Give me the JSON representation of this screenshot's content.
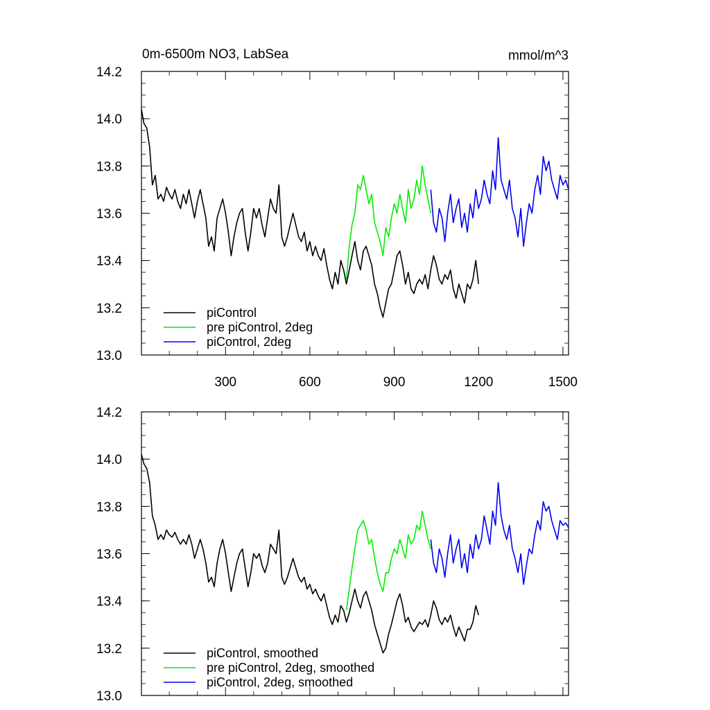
{
  "chart_data": [
    {
      "type": "line",
      "title": "0m-6500m NO3, LabSea",
      "units": "mmol/m^3",
      "xlabel": "",
      "ylabel": "",
      "xlim": [
        1,
        1520
      ],
      "ylim": [
        13.0,
        14.2
      ],
      "xticks": [
        "300",
        "600",
        "900",
        "1200",
        "1500"
      ],
      "yticks": [
        "13.0",
        "13.2",
        "13.4",
        "13.6",
        "13.8",
        "14.0",
        "14.2"
      ],
      "legend_position": "bottom-left",
      "series": [
        {
          "name": "piControl",
          "color": "#000000",
          "x": [
            1,
            10,
            20,
            30,
            40,
            50,
            60,
            70,
            80,
            90,
            100,
            110,
            120,
            130,
            140,
            150,
            160,
            170,
            180,
            190,
            200,
            210,
            220,
            230,
            240,
            250,
            260,
            270,
            280,
            290,
            300,
            310,
            320,
            330,
            340,
            350,
            360,
            370,
            380,
            390,
            400,
            410,
            420,
            430,
            440,
            450,
            460,
            470,
            480,
            490,
            500,
            510,
            520,
            530,
            540,
            550,
            560,
            570,
            580,
            590,
            600,
            610,
            620,
            630,
            640,
            650,
            660,
            670,
            680,
            690,
            700,
            710,
            720,
            730,
            740,
            750,
            760,
            770,
            780,
            790,
            800,
            810,
            820,
            830,
            840,
            850,
            860,
            870,
            880,
            890,
            900,
            910,
            920,
            930,
            940,
            950,
            960,
            970,
            980,
            990,
            1000,
            1010,
            1020,
            1030,
            1040,
            1050,
            1060,
            1070,
            1080,
            1090,
            1100,
            1110,
            1120,
            1130,
            1140,
            1150,
            1160,
            1170,
            1180,
            1190,
            1200
          ],
          "values": [
            14.04,
            13.98,
            13.96,
            13.88,
            13.72,
            13.76,
            13.66,
            13.68,
            13.65,
            13.71,
            13.68,
            13.66,
            13.7,
            13.65,
            13.62,
            13.68,
            13.64,
            13.7,
            13.64,
            13.58,
            13.65,
            13.7,
            13.64,
            13.58,
            13.46,
            13.5,
            13.44,
            13.58,
            13.62,
            13.66,
            13.6,
            13.52,
            13.42,
            13.5,
            13.56,
            13.6,
            13.62,
            13.52,
            13.44,
            13.52,
            13.62,
            13.58,
            13.62,
            13.55,
            13.5,
            13.58,
            13.66,
            13.62,
            13.6,
            13.72,
            13.5,
            13.46,
            13.5,
            13.55,
            13.6,
            13.55,
            13.5,
            13.48,
            13.52,
            13.44,
            13.48,
            13.42,
            13.46,
            13.42,
            13.4,
            13.45,
            13.38,
            13.32,
            13.28,
            13.35,
            13.3,
            13.4,
            13.36,
            13.3,
            13.36,
            13.42,
            13.48,
            13.4,
            13.36,
            13.44,
            13.46,
            13.42,
            13.38,
            13.3,
            13.26,
            13.2,
            13.16,
            13.22,
            13.28,
            13.3,
            13.36,
            13.42,
            13.44,
            13.38,
            13.3,
            13.35,
            13.28,
            13.26,
            13.3,
            13.32,
            13.3,
            13.34,
            13.28,
            13.36,
            13.42,
            13.38,
            13.32,
            13.3,
            13.34,
            13.32,
            13.36,
            13.28,
            13.24,
            13.3,
            13.26,
            13.22,
            13.3,
            13.28,
            13.32,
            13.4,
            13.3
          ]
        },
        {
          "name": "pre piControl, 2deg",
          "color": "#00ee00",
          "x": [
            730,
            740,
            750,
            760,
            770,
            780,
            790,
            800,
            810,
            820,
            830,
            840,
            850,
            860,
            870,
            880,
            890,
            900,
            910,
            920,
            930,
            940,
            950,
            960,
            970,
            980,
            990,
            1000,
            1010,
            1020,
            1030
          ],
          "values": [
            13.32,
            13.46,
            13.55,
            13.6,
            13.72,
            13.7,
            13.76,
            13.7,
            13.64,
            13.68,
            13.56,
            13.52,
            13.48,
            13.42,
            13.54,
            13.5,
            13.58,
            13.64,
            13.6,
            13.68,
            13.62,
            13.56,
            13.7,
            13.62,
            13.66,
            13.74,
            13.68,
            13.8,
            13.72,
            13.66,
            13.6
          ]
        },
        {
          "name": "piControl, 2deg",
          "color": "#0000ee",
          "x": [
            1030,
            1040,
            1050,
            1060,
            1070,
            1080,
            1090,
            1100,
            1110,
            1120,
            1130,
            1140,
            1150,
            1160,
            1170,
            1180,
            1190,
            1200,
            1210,
            1220,
            1230,
            1240,
            1250,
            1260,
            1270,
            1280,
            1290,
            1300,
            1310,
            1320,
            1330,
            1340,
            1350,
            1360,
            1370,
            1380,
            1390,
            1400,
            1410,
            1420,
            1430,
            1440,
            1450,
            1460,
            1470,
            1480,
            1490,
            1500,
            1510,
            1520
          ],
          "values": [
            13.7,
            13.56,
            13.52,
            13.62,
            13.58,
            13.48,
            13.6,
            13.68,
            13.56,
            13.62,
            13.66,
            13.54,
            13.6,
            13.52,
            13.64,
            13.58,
            13.7,
            13.62,
            13.66,
            13.74,
            13.68,
            13.64,
            13.78,
            13.7,
            13.92,
            13.74,
            13.7,
            13.66,
            13.74,
            13.62,
            13.58,
            13.5,
            13.62,
            13.46,
            13.56,
            13.64,
            13.6,
            13.7,
            13.76,
            13.68,
            13.84,
            13.78,
            13.82,
            13.74,
            13.7,
            13.66,
            13.76,
            13.72,
            13.74,
            13.7
          ]
        }
      ],
      "legend": [
        "piControl",
        "pre piControl, 2deg",
        "piControl, 2deg"
      ]
    },
    {
      "type": "line",
      "title": "",
      "xlabel": "",
      "ylabel": "",
      "xlim": [
        1,
        1520
      ],
      "ylim": [
        13.0,
        14.2
      ],
      "xticks": [],
      "yticks": [
        "13.0",
        "13.2",
        "13.4",
        "13.6",
        "13.8",
        "14.0",
        "14.2"
      ],
      "legend_position": "bottom-left",
      "series": [
        {
          "name": "piControl, smoothed",
          "color": "#000000",
          "x": [
            1,
            10,
            20,
            30,
            40,
            50,
            60,
            70,
            80,
            90,
            100,
            110,
            120,
            130,
            140,
            150,
            160,
            170,
            180,
            190,
            200,
            210,
            220,
            230,
            240,
            250,
            260,
            270,
            280,
            290,
            300,
            310,
            320,
            330,
            340,
            350,
            360,
            370,
            380,
            390,
            400,
            410,
            420,
            430,
            440,
            450,
            460,
            470,
            480,
            490,
            500,
            510,
            520,
            530,
            540,
            550,
            560,
            570,
            580,
            590,
            600,
            610,
            620,
            630,
            640,
            650,
            660,
            670,
            680,
            690,
            700,
            710,
            720,
            730,
            740,
            750,
            760,
            770,
            780,
            790,
            800,
            810,
            820,
            830,
            840,
            850,
            860,
            870,
            880,
            890,
            900,
            910,
            920,
            930,
            940,
            950,
            960,
            970,
            980,
            990,
            1000,
            1010,
            1020,
            1030,
            1040,
            1050,
            1060,
            1070,
            1080,
            1090,
            1100,
            1110,
            1120,
            1130,
            1140,
            1150,
            1160,
            1170,
            1180,
            1190,
            1200
          ],
          "values": [
            14.02,
            13.98,
            13.96,
            13.9,
            13.76,
            13.72,
            13.66,
            13.68,
            13.66,
            13.7,
            13.68,
            13.67,
            13.69,
            13.66,
            13.64,
            13.66,
            13.64,
            13.68,
            13.64,
            13.58,
            13.62,
            13.66,
            13.62,
            13.56,
            13.48,
            13.5,
            13.46,
            13.56,
            13.62,
            13.66,
            13.6,
            13.52,
            13.44,
            13.5,
            13.56,
            13.6,
            13.62,
            13.54,
            13.46,
            13.52,
            13.6,
            13.58,
            13.6,
            13.55,
            13.52,
            13.56,
            13.64,
            13.62,
            13.6,
            13.7,
            13.5,
            13.47,
            13.5,
            13.54,
            13.58,
            13.54,
            13.5,
            13.48,
            13.5,
            13.45,
            13.47,
            13.43,
            13.45,
            13.42,
            13.4,
            13.43,
            13.38,
            13.33,
            13.3,
            13.34,
            13.31,
            13.38,
            13.36,
            13.31,
            13.35,
            13.4,
            13.45,
            13.4,
            13.37,
            13.42,
            13.44,
            13.4,
            13.36,
            13.3,
            13.26,
            13.22,
            13.18,
            13.2,
            13.26,
            13.3,
            13.35,
            13.4,
            13.43,
            13.38,
            13.31,
            13.33,
            13.29,
            13.27,
            13.29,
            13.31,
            13.3,
            13.32,
            13.29,
            13.34,
            13.4,
            13.37,
            13.32,
            13.3,
            13.33,
            13.31,
            13.34,
            13.29,
            13.25,
            13.29,
            13.26,
            13.23,
            13.28,
            13.28,
            13.31,
            13.38,
            13.34
          ]
        },
        {
          "name": "pre piControl, 2deg, smoothed",
          "color": "#00ee00",
          "x": [
            730,
            740,
            750,
            760,
            770,
            780,
            790,
            800,
            810,
            820,
            830,
            840,
            850,
            860,
            870,
            880,
            890,
            900,
            910,
            920,
            930,
            940,
            950,
            960,
            970,
            980,
            990,
            1000,
            1010,
            1020,
            1030
          ],
          "values": [
            13.36,
            13.45,
            13.54,
            13.62,
            13.7,
            13.72,
            13.74,
            13.7,
            13.64,
            13.66,
            13.58,
            13.52,
            13.47,
            13.44,
            13.52,
            13.52,
            13.58,
            13.62,
            13.6,
            13.66,
            13.62,
            13.58,
            13.68,
            13.64,
            13.66,
            13.72,
            13.7,
            13.78,
            13.72,
            13.66,
            13.62
          ]
        },
        {
          "name": "piControl, 2deg, smoothed",
          "color": "#0000ee",
          "x": [
            1030,
            1040,
            1050,
            1060,
            1070,
            1080,
            1090,
            1100,
            1110,
            1120,
            1130,
            1140,
            1150,
            1160,
            1170,
            1180,
            1190,
            1200,
            1210,
            1220,
            1230,
            1240,
            1250,
            1260,
            1270,
            1280,
            1290,
            1300,
            1310,
            1320,
            1330,
            1340,
            1350,
            1360,
            1370,
            1380,
            1390,
            1400,
            1410,
            1420,
            1430,
            1440,
            1450,
            1460,
            1470,
            1480,
            1490,
            1500,
            1510,
            1520
          ],
          "values": [
            13.66,
            13.56,
            13.52,
            13.62,
            13.58,
            13.5,
            13.6,
            13.68,
            13.56,
            13.62,
            13.66,
            13.54,
            13.6,
            13.52,
            13.64,
            13.58,
            13.68,
            13.62,
            13.66,
            13.76,
            13.7,
            13.64,
            13.78,
            13.72,
            13.9,
            13.76,
            13.7,
            13.66,
            13.72,
            13.62,
            13.58,
            13.52,
            13.6,
            13.47,
            13.55,
            13.62,
            13.6,
            13.68,
            13.74,
            13.7,
            13.82,
            13.78,
            13.8,
            13.74,
            13.7,
            13.66,
            13.74,
            13.72,
            13.73,
            13.71
          ]
        }
      ],
      "legend": [
        "piControl, smoothed",
        "pre piControl, 2deg, smoothed",
        "piControl, 2deg, smoothed"
      ]
    }
  ]
}
